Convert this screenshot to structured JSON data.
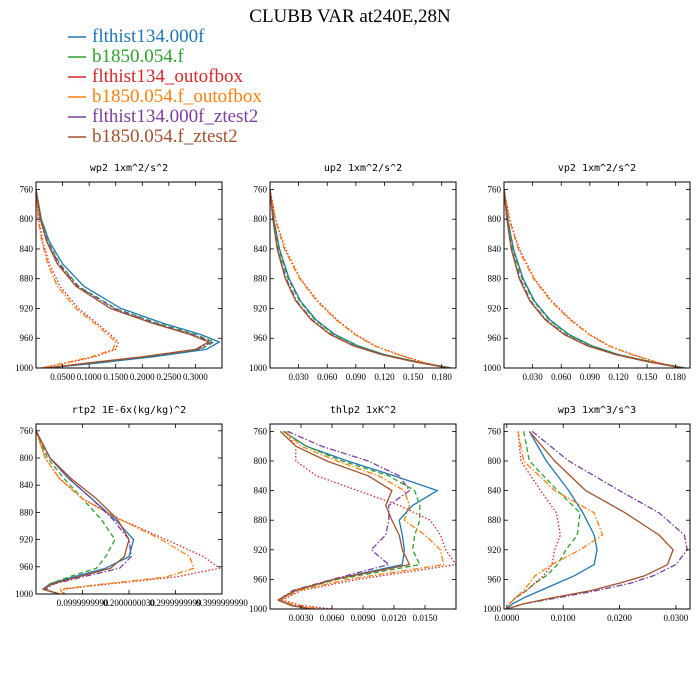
{
  "chart_data": {
    "type": "line",
    "title": "CLUBB VAR at240E,28N",
    "y_axis": {
      "label": "",
      "ylim": [
        1000,
        750
      ],
      "ticks": [
        "760",
        "800",
        "840",
        "880",
        "920",
        "960",
        "1000"
      ]
    },
    "series": [
      {
        "name": "flthist134.000f",
        "color": "#1f77b4",
        "dash": "solid"
      },
      {
        "name": "b1850.054.f",
        "color": "#2ca02c",
        "dash": "dashed"
      },
      {
        "name": "flthist134_outofbox",
        "color": "#d62728",
        "dash": "dotted"
      },
      {
        "name": "b1850.054.f_outofbox",
        "color": "#ff7f0e",
        "dash": "dashdot"
      },
      {
        "name": "flthist134.000f_ztest2",
        "color": "#7b3fa0",
        "dash": "dashdot"
      },
      {
        "name": "b1850.054.f_ztest2",
        "color": "#a0522d",
        "dash": "solid"
      }
    ],
    "panels": [
      {
        "title": "wp2  1xm^2/s^2",
        "xlim": [
          0,
          0.35
        ],
        "xticks": [
          0.05,
          0.1,
          0.15,
          0.2,
          0.25,
          0.3
        ],
        "xtick_labels": [
          "0.0500",
          "0.1000",
          "0.1500",
          "0.2000",
          "0.2500",
          "0.3000"
        ],
        "y": [
          760,
          800,
          830,
          860,
          890,
          920,
          940,
          955,
          965,
          975,
          985,
          993,
          1000
        ],
        "series": [
          [
            0.0,
            0.01,
            0.025,
            0.05,
            0.09,
            0.16,
            0.24,
            0.31,
            0.345,
            0.32,
            0.22,
            0.12,
            0.02
          ],
          [
            0.0,
            0.01,
            0.022,
            0.045,
            0.08,
            0.15,
            0.23,
            0.3,
            0.335,
            0.31,
            0.21,
            0.11,
            0.02
          ],
          [
            0.0,
            0.005,
            0.013,
            0.025,
            0.045,
            0.08,
            0.115,
            0.14,
            0.155,
            0.15,
            0.11,
            0.06,
            0.01
          ],
          [
            0.0,
            0.004,
            0.011,
            0.022,
            0.04,
            0.075,
            0.11,
            0.135,
            0.15,
            0.145,
            0.105,
            0.055,
            0.01
          ],
          [
            0.0,
            0.009,
            0.021,
            0.043,
            0.078,
            0.147,
            0.225,
            0.295,
            0.33,
            0.305,
            0.205,
            0.105,
            0.02
          ],
          [
            0.0,
            0.008,
            0.02,
            0.04,
            0.075,
            0.14,
            0.22,
            0.29,
            0.325,
            0.3,
            0.2,
            0.1,
            0.02
          ]
        ]
      },
      {
        "title": "up2  1xm^2/s^2",
        "xlim": [
          0,
          0.195
        ],
        "xticks": [
          0.03,
          0.06,
          0.09,
          0.12,
          0.15,
          0.18
        ],
        "xtick_labels": [
          "0.030",
          "0.060",
          "0.090",
          "0.120",
          "0.150",
          "0.180"
        ],
        "y": [
          760,
          800,
          840,
          880,
          910,
          935,
          955,
          970,
          982,
          992,
          1000
        ],
        "series": [
          [
            0.0,
            0.004,
            0.01,
            0.02,
            0.032,
            0.048,
            0.068,
            0.092,
            0.12,
            0.155,
            0.19
          ],
          [
            0.0,
            0.0035,
            0.009,
            0.019,
            0.031,
            0.047,
            0.067,
            0.091,
            0.12,
            0.155,
            0.19
          ],
          [
            0.0,
            0.006,
            0.016,
            0.032,
            0.05,
            0.07,
            0.09,
            0.11,
            0.135,
            0.16,
            0.185
          ],
          [
            0.0,
            0.0055,
            0.015,
            0.031,
            0.049,
            0.069,
            0.089,
            0.109,
            0.134,
            0.159,
            0.184
          ],
          [
            0.0,
            0.003,
            0.008,
            0.017,
            0.028,
            0.044,
            0.064,
            0.088,
            0.118,
            0.153,
            0.188
          ],
          [
            0.0,
            0.003,
            0.0075,
            0.016,
            0.027,
            0.043,
            0.063,
            0.087,
            0.117,
            0.152,
            0.187
          ]
        ]
      },
      {
        "title": "vp2  1xm^2/s^2",
        "xlim": [
          0,
          0.195
        ],
        "xticks": [
          0.03,
          0.06,
          0.09,
          0.12,
          0.15,
          0.18
        ],
        "xtick_labels": [
          "0.030",
          "0.060",
          "0.090",
          "0.120",
          "0.150",
          "0.180"
        ],
        "y": [
          760,
          800,
          840,
          880,
          910,
          935,
          955,
          970,
          982,
          992,
          1000
        ],
        "series": [
          [
            0.0,
            0.004,
            0.01,
            0.02,
            0.032,
            0.048,
            0.068,
            0.092,
            0.12,
            0.155,
            0.19
          ],
          [
            0.0,
            0.0035,
            0.009,
            0.019,
            0.031,
            0.047,
            0.067,
            0.091,
            0.12,
            0.155,
            0.19
          ],
          [
            0.0,
            0.006,
            0.016,
            0.032,
            0.05,
            0.07,
            0.09,
            0.11,
            0.135,
            0.16,
            0.185
          ],
          [
            0.0,
            0.0055,
            0.015,
            0.031,
            0.049,
            0.069,
            0.089,
            0.109,
            0.134,
            0.159,
            0.184
          ],
          [
            0.0,
            0.003,
            0.008,
            0.017,
            0.028,
            0.044,
            0.064,
            0.088,
            0.118,
            0.153,
            0.188
          ],
          [
            0.0,
            0.003,
            0.0075,
            0.016,
            0.027,
            0.043,
            0.063,
            0.087,
            0.117,
            0.152,
            0.187
          ]
        ]
      },
      {
        "title": "rtp2  1E-6x(kg/kg)^2",
        "xlim": [
          0,
          0.4
        ],
        "xticks": [
          0.1,
          0.2,
          0.3,
          0.4
        ],
        "xtick_labels": [
          "0.0999999990",
          "0.2000000030",
          "0.2999999999",
          "0.3999999990"
        ],
        "y": [
          760,
          800,
          830,
          860,
          890,
          920,
          945,
          962,
          975,
          985,
          993,
          1000
        ],
        "series": [
          [
            0.0,
            0.03,
            0.07,
            0.12,
            0.17,
            0.21,
            0.2,
            0.15,
            0.08,
            0.03,
            0.015,
            0.05
          ],
          [
            0.0,
            0.025,
            0.06,
            0.1,
            0.14,
            0.17,
            0.15,
            0.13,
            0.07,
            0.03,
            0.015,
            0.05
          ],
          [
            0.0,
            0.02,
            0.05,
            0.1,
            0.18,
            0.28,
            0.36,
            0.395,
            0.3,
            0.16,
            0.06,
            0.06
          ],
          [
            0.0,
            0.02,
            0.05,
            0.1,
            0.18,
            0.27,
            0.33,
            0.34,
            0.28,
            0.15,
            0.05,
            0.06
          ],
          [
            0.0,
            0.03,
            0.07,
            0.12,
            0.165,
            0.2,
            0.205,
            0.18,
            0.1,
            0.04,
            0.02,
            0.05
          ],
          [
            0.0,
            0.03,
            0.075,
            0.13,
            0.175,
            0.2,
            0.19,
            0.16,
            0.09,
            0.035,
            0.015,
            0.05
          ]
        ]
      },
      {
        "title": "thlp2  1xK^2",
        "xlim": [
          0,
          0.018
        ],
        "xticks": [
          0.003,
          0.006,
          0.009,
          0.012,
          0.015
        ],
        "xtick_labels": [
          "0.0030",
          "0.0060",
          "0.0090",
          "0.0120",
          "0.0150"
        ],
        "y": [
          760,
          780,
          800,
          820,
          840,
          860,
          880,
          900,
          920,
          940,
          960,
          975,
          988,
          995,
          1000
        ],
        "series": [
          [
            0.0013,
            0.0035,
            0.0075,
            0.012,
            0.0162,
            0.0138,
            0.0125,
            0.0128,
            0.013,
            0.0128,
            0.0062,
            0.0025,
            0.0008,
            0.002,
            0.004
          ],
          [
            0.0013,
            0.0035,
            0.007,
            0.0115,
            0.014,
            0.0145,
            0.0145,
            0.014,
            0.0138,
            0.0145,
            0.0065,
            0.0025,
            0.0008,
            0.002,
            0.004
          ],
          [
            0.0015,
            0.0025,
            0.0025,
            0.0045,
            0.0085,
            0.0125,
            0.0155,
            0.0165,
            0.017,
            0.018,
            0.0085,
            0.003,
            0.0012,
            0.003,
            0.006
          ],
          [
            0.0015,
            0.003,
            0.0065,
            0.0105,
            0.013,
            0.0135,
            0.013,
            0.015,
            0.0165,
            0.0168,
            0.0075,
            0.0028,
            0.001,
            0.0025,
            0.005
          ],
          [
            0.0017,
            0.005,
            0.0095,
            0.0125,
            0.0135,
            0.0115,
            0.0115,
            0.0112,
            0.0098,
            0.0115,
            0.006,
            0.0022,
            0.0008,
            0.002,
            0.004
          ],
          [
            0.001,
            0.0025,
            0.0055,
            0.0095,
            0.0118,
            0.0112,
            0.0118,
            0.0125,
            0.0128,
            0.0135,
            0.0062,
            0.0024,
            0.0008,
            0.002,
            0.004
          ]
        ]
      },
      {
        "title": "wp3  1xm^3/s^3",
        "xlim": [
          -0.0005,
          0.0325
        ],
        "xticks": [
          0.0,
          0.01,
          0.02,
          0.03
        ],
        "xtick_labels": [
          "0.0000",
          "0.0100",
          "0.0200",
          "0.0300"
        ],
        "y": [
          760,
          800,
          840,
          870,
          900,
          920,
          940,
          955,
          965,
          975,
          985,
          993,
          1000
        ],
        "series": [
          [
            0.004,
            0.007,
            0.011,
            0.0135,
            0.0155,
            0.016,
            0.0155,
            0.012,
            0.009,
            0.006,
            0.003,
            0.001,
            0.0
          ],
          [
            0.003,
            0.004,
            0.009,
            0.013,
            0.0125,
            0.0105,
            0.009,
            0.007,
            0.005,
            0.0035,
            0.0015,
            0.0005,
            0.0
          ],
          [
            0.002,
            0.0025,
            0.006,
            0.0088,
            0.0095,
            0.0085,
            0.008,
            0.0065,
            0.005,
            0.0035,
            0.0015,
            0.0005,
            0.0
          ],
          [
            0.002,
            0.003,
            0.0085,
            0.0155,
            0.017,
            0.013,
            0.008,
            0.005,
            0.004,
            0.003,
            0.0015,
            0.0005,
            0.0
          ],
          [
            0.0045,
            0.011,
            0.02,
            0.027,
            0.0315,
            0.032,
            0.03,
            0.026,
            0.022,
            0.016,
            0.009,
            0.003,
            0.0
          ],
          [
            0.004,
            0.0085,
            0.014,
            0.021,
            0.027,
            0.0295,
            0.0285,
            0.0245,
            0.02,
            0.015,
            0.008,
            0.003,
            0.0
          ]
        ]
      }
    ]
  }
}
